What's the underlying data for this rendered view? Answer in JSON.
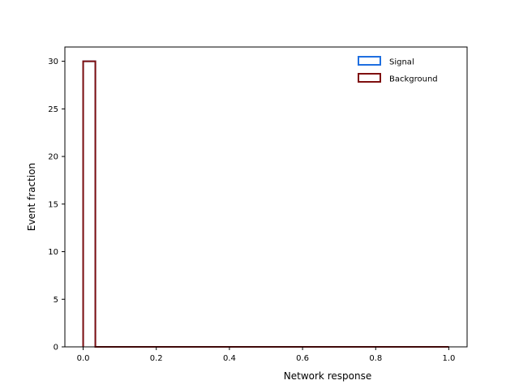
{
  "chart_data": {
    "type": "histogram",
    "xlabel": "Network response",
    "ylabel": "Event fraction",
    "xlim": [
      -0.05,
      1.05
    ],
    "ylim": [
      0,
      31.5
    ],
    "xticks": [
      0.0,
      0.2,
      0.4,
      0.6,
      0.8,
      1.0
    ],
    "xtick_labels": [
      "0.0",
      "0.2",
      "0.4",
      "0.6",
      "0.8",
      "1.0"
    ],
    "yticks": [
      0,
      5,
      10,
      15,
      20,
      25,
      30
    ],
    "ytick_labels": [
      "0",
      "5",
      "10",
      "15",
      "20",
      "25",
      "30"
    ],
    "bins": {
      "start": 0.0,
      "end": 1.0,
      "count": 30
    },
    "grid": false,
    "legend_position": "top-right",
    "series": [
      {
        "name": "Signal",
        "color": "#1f6fe0",
        "values": [
          30,
          0,
          0,
          0,
          0,
          0,
          0,
          0,
          0,
          0,
          0,
          0,
          0,
          0,
          0,
          0,
          0,
          0,
          0,
          0,
          0,
          0,
          0,
          0,
          0,
          0,
          0,
          0,
          0,
          0
        ]
      },
      {
        "name": "Background",
        "color": "#7f0f0f",
        "values": [
          30,
          0,
          0,
          0,
          0,
          0,
          0,
          0,
          0,
          0,
          0,
          0,
          0,
          0,
          0,
          0,
          0,
          0,
          0,
          0,
          0,
          0,
          0,
          0,
          0,
          0,
          0,
          0,
          0,
          0
        ]
      }
    ]
  }
}
